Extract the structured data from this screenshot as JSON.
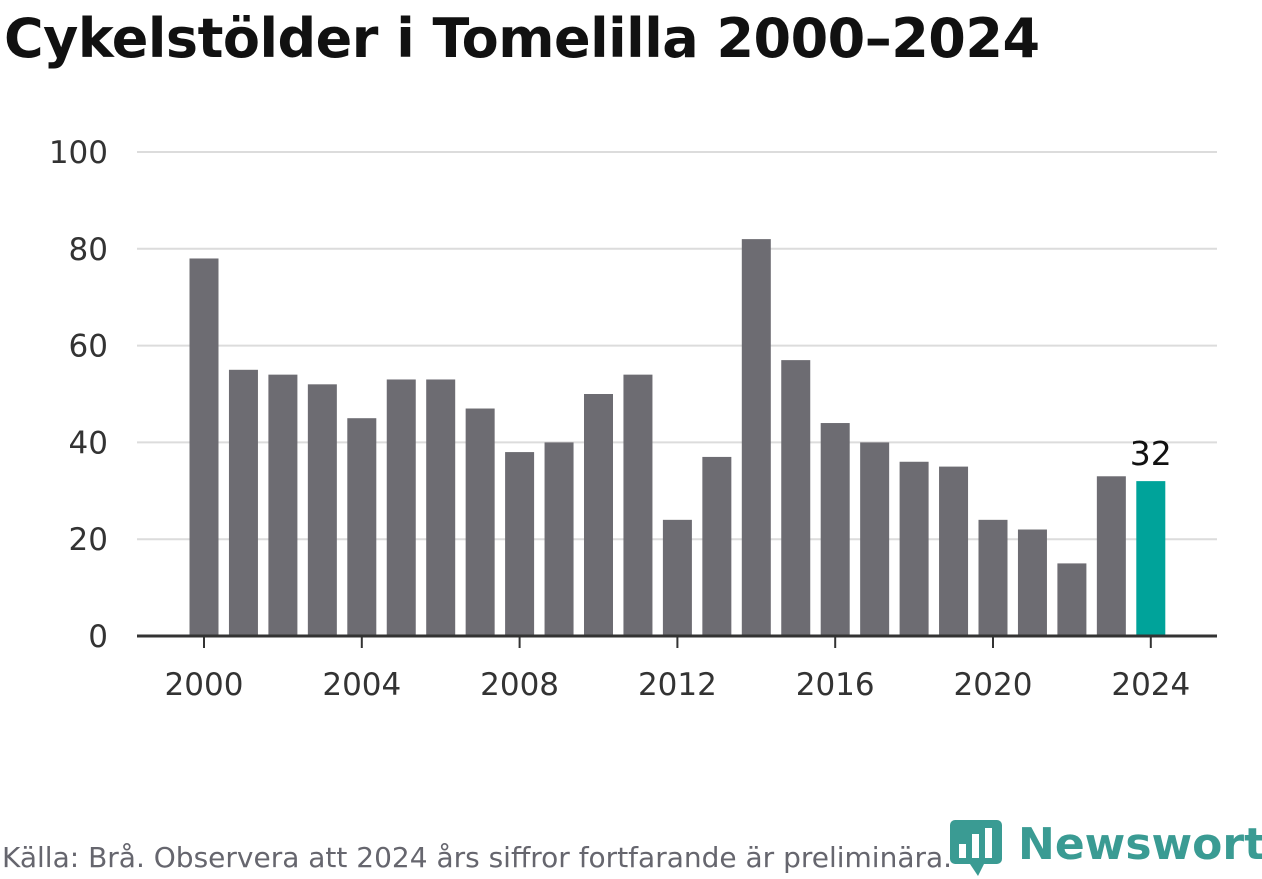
{
  "chart_data": {
    "type": "bar",
    "title": "Cykelstölder i Tomelilla 2000–2024",
    "categories": [
      2000,
      2001,
      2002,
      2003,
      2004,
      2005,
      2006,
      2007,
      2008,
      2009,
      2010,
      2011,
      2012,
      2013,
      2014,
      2015,
      2016,
      2017,
      2018,
      2019,
      2020,
      2021,
      2022,
      2023,
      2024
    ],
    "values": [
      78,
      55,
      54,
      52,
      45,
      53,
      53,
      47,
      38,
      40,
      50,
      54,
      24,
      37,
      82,
      57,
      44,
      40,
      36,
      35,
      24,
      22,
      15,
      33,
      32
    ],
    "highlight": {
      "category": 2024,
      "label": "32",
      "color": "#00a39a"
    },
    "bar_color": "#6d6c72",
    "ylim": [
      0,
      100
    ],
    "yticks": [
      0,
      20,
      40,
      60,
      80,
      100
    ],
    "xticks": [
      2000,
      2004,
      2008,
      2012,
      2016,
      2020,
      2024
    ],
    "xlabel": "",
    "ylabel": "",
    "grid": "horizontal",
    "gridline_color": "#dcdcdc",
    "axis_color": "#333333"
  },
  "footer": {
    "source": "Källa: Brå. Observera att 2024 års siffror fortfarande är preliminära."
  },
  "logo": {
    "text": "Newsworthy",
    "color": "#3a9b93",
    "icon": "newsworthy-chart-icon"
  }
}
